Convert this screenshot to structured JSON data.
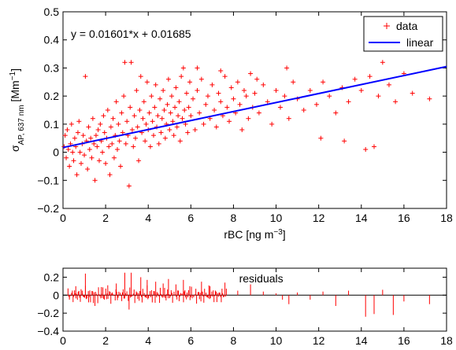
{
  "chart_data": [
    {
      "type": "scatter",
      "title": "",
      "xlabel": {
        "main": "rBC [ng m",
        "sup": "−3",
        "tail": "]"
      },
      "ylabel": {
        "main": "σ",
        "sub": "AP, 637 nm",
        "rest": " [Mm",
        "sup": "−1",
        "tail": "]"
      },
      "xlim": [
        0,
        18
      ],
      "ylim": [
        -0.2,
        0.5
      ],
      "xticks": [
        0,
        2,
        4,
        6,
        8,
        10,
        12,
        14,
        16,
        18
      ],
      "yticks": [
        -0.2,
        -0.1,
        0,
        0.1,
        0.2,
        0.3,
        0.4,
        0.5
      ],
      "xtick_labels": [
        "0",
        "2",
        "4",
        "6",
        "8",
        "10",
        "12",
        "14",
        "16",
        "18"
      ],
      "ytick_labels": [
        "−0.2",
        "−0.1",
        "0",
        "0.1",
        "0.2",
        "0.3",
        "0.4",
        "0.5"
      ],
      "equation": "y = 0.01601*x + 0.01685",
      "fit": {
        "slope": 0.01601,
        "intercept": 0.01685
      },
      "legend": [
        {
          "label": "data",
          "marker": "+",
          "color": "#ff0000"
        },
        {
          "label": "linear",
          "marker": "line",
          "color": "#0000ff"
        }
      ],
      "legend_position": "top-right",
      "grid": false,
      "series": [
        {
          "name": "data",
          "color": "#ff0000",
          "points": [
            [
              0.05,
              0.02
            ],
            [
              0.1,
              0.06
            ],
            [
              0.15,
              -0.02
            ],
            [
              0.2,
              0.08
            ],
            [
              0.25,
              0.01
            ],
            [
              0.3,
              -0.05
            ],
            [
              0.35,
              0.03
            ],
            [
              0.4,
              0.1
            ],
            [
              0.45,
              0.0
            ],
            [
              0.5,
              -0.03
            ],
            [
              0.55,
              0.05
            ],
            [
              0.6,
              0.02
            ],
            [
              0.65,
              -0.08
            ],
            [
              0.7,
              0.07
            ],
            [
              0.75,
              0.11
            ],
            [
              0.8,
              0.0
            ],
            [
              0.85,
              -0.04
            ],
            [
              0.9,
              0.03
            ],
            [
              0.95,
              0.06
            ],
            [
              1.0,
              -0.01
            ],
            [
              1.05,
              0.27
            ],
            [
              1.1,
              0.04
            ],
            [
              1.15,
              -0.06
            ],
            [
              1.2,
              0.09
            ],
            [
              1.25,
              0.01
            ],
            [
              1.3,
              0.05
            ],
            [
              1.35,
              -0.02
            ],
            [
              1.4,
              0.12
            ],
            [
              1.45,
              0.03
            ],
            [
              1.5,
              -0.1
            ],
            [
              1.55,
              0.06
            ],
            [
              1.6,
              0.02
            ],
            [
              1.65,
              0.08
            ],
            [
              1.7,
              -0.03
            ],
            [
              1.75,
              0.1
            ],
            [
              1.8,
              0.04
            ],
            [
              1.85,
              0.0
            ],
            [
              1.9,
              0.13
            ],
            [
              1.95,
              0.07
            ],
            [
              2.0,
              -0.04
            ],
            [
              2.05,
              0.05
            ],
            [
              2.1,
              0.15
            ],
            [
              2.15,
              0.02
            ],
            [
              2.2,
              -0.08
            ],
            [
              2.25,
              0.09
            ],
            [
              2.3,
              0.03
            ],
            [
              2.35,
              0.12
            ],
            [
              2.4,
              -0.02
            ],
            [
              2.45,
              0.06
            ],
            [
              2.5,
              0.18
            ],
            [
              2.55,
              0.01
            ],
            [
              2.6,
              0.1
            ],
            [
              2.65,
              0.04
            ],
            [
              2.7,
              -0.05
            ],
            [
              2.75,
              0.14
            ],
            [
              2.8,
              0.07
            ],
            [
              2.85,
              0.2
            ],
            [
              2.9,
              0.32
            ],
            [
              2.95,
              0.03
            ],
            [
              3.0,
              0.11
            ],
            [
              3.05,
              0.06
            ],
            [
              3.1,
              -0.12
            ],
            [
              3.15,
              0.16
            ],
            [
              3.2,
              0.32
            ],
            [
              3.25,
              0.08
            ],
            [
              3.3,
              0.02
            ],
            [
              3.35,
              0.13
            ],
            [
              3.4,
              0.05
            ],
            [
              3.45,
              0.22
            ],
            [
              3.5,
              0.09
            ],
            [
              3.55,
              -0.03
            ],
            [
              3.6,
              0.15
            ],
            [
              3.65,
              0.27
            ],
            [
              3.7,
              0.07
            ],
            [
              3.75,
              0.12
            ],
            [
              3.8,
              0.18
            ],
            [
              3.85,
              0.04
            ],
            [
              3.9,
              0.1
            ],
            [
              3.95,
              0.25
            ],
            [
              4.0,
              0.08
            ],
            [
              4.05,
              0.14
            ],
            [
              4.1,
              0.02
            ],
            [
              4.15,
              0.2
            ],
            [
              4.2,
              0.11
            ],
            [
              4.25,
              0.06
            ],
            [
              4.3,
              0.16
            ],
            [
              4.35,
              0.24
            ],
            [
              4.4,
              0.09
            ],
            [
              4.45,
              0.13
            ],
            [
              4.5,
              0.03
            ],
            [
              4.55,
              0.19
            ],
            [
              4.6,
              0.07
            ],
            [
              4.65,
              0.12
            ],
            [
              4.7,
              0.22
            ],
            [
              4.75,
              0.15
            ],
            [
              4.8,
              0.05
            ],
            [
              4.85,
              0.1
            ],
            [
              4.9,
              0.17
            ],
            [
              4.95,
              0.26
            ],
            [
              5.0,
              0.08
            ],
            [
              5.05,
              0.14
            ],
            [
              5.1,
              0.2
            ],
            [
              5.15,
              0.11
            ],
            [
              5.2,
              0.06
            ],
            [
              5.25,
              0.16
            ],
            [
              5.3,
              0.23
            ],
            [
              5.35,
              0.09
            ],
            [
              5.4,
              0.13
            ],
            [
              5.45,
              0.18
            ],
            [
              5.5,
              0.04
            ],
            [
              5.55,
              0.27
            ],
            [
              5.6,
              0.12
            ],
            [
              5.65,
              0.3
            ],
            [
              5.7,
              0.15
            ],
            [
              5.75,
              0.1
            ],
            [
              5.8,
              0.21
            ],
            [
              5.85,
              0.07
            ],
            [
              5.9,
              0.16
            ],
            [
              5.95,
              0.25
            ],
            [
              6.0,
              0.13
            ],
            [
              6.1,
              0.19
            ],
            [
              6.2,
              0.08
            ],
            [
              6.3,
              0.22
            ],
            [
              6.4,
              0.14
            ],
            [
              6.5,
              0.26
            ],
            [
              6.6,
              0.1
            ],
            [
              6.7,
              0.17
            ],
            [
              6.8,
              0.2
            ],
            [
              6.9,
              0.12
            ],
            [
              7.0,
              0.24
            ],
            [
              7.1,
              0.15
            ],
            [
              7.2,
              0.09
            ],
            [
              7.3,
              0.21
            ],
            [
              7.4,
              0.18
            ],
            [
              7.5,
              0.13
            ],
            [
              7.6,
              0.27
            ],
            [
              7.7,
              0.16
            ],
            [
              7.8,
              0.11
            ],
            [
              7.9,
              0.23
            ],
            [
              8.0,
              0.19
            ],
            [
              8.1,
              0.14
            ],
            [
              8.2,
              0.25
            ],
            [
              8.3,
              0.17
            ],
            [
              8.4,
              0.08
            ],
            [
              8.5,
              0.22
            ],
            [
              8.6,
              0.2
            ],
            [
              8.7,
              0.12
            ],
            [
              8.8,
              0.28
            ],
            [
              8.9,
              0.16
            ],
            [
              9.0,
              0.21
            ],
            [
              9.2,
              0.14
            ],
            [
              9.4,
              0.24
            ],
            [
              9.6,
              0.18
            ],
            [
              9.8,
              0.1
            ],
            [
              10.0,
              0.22
            ],
            [
              10.2,
              0.16
            ],
            [
              10.4,
              0.2
            ],
            [
              10.6,
              0.12
            ],
            [
              10.8,
              0.25
            ],
            [
              11.0,
              0.19
            ],
            [
              11.3,
              0.15
            ],
            [
              11.6,
              0.22
            ],
            [
              11.9,
              0.17
            ],
            [
              12.2,
              0.25
            ],
            [
              12.5,
              0.2
            ],
            [
              12.8,
              0.14
            ],
            [
              13.1,
              0.23
            ],
            [
              13.4,
              0.18
            ],
            [
              13.7,
              0.26
            ],
            [
              14.0,
              0.22
            ],
            [
              14.2,
              0.01
            ],
            [
              14.4,
              0.27
            ],
            [
              14.6,
              0.02
            ],
            [
              14.8,
              0.2
            ],
            [
              15.0,
              0.32
            ],
            [
              15.3,
              0.24
            ],
            [
              15.6,
              0.18
            ],
            [
              16.0,
              0.28
            ],
            [
              16.4,
              0.21
            ],
            [
              17.2,
              0.19
            ],
            [
              12.1,
              0.05
            ],
            [
              13.2,
              0.04
            ],
            [
              9.1,
              0.26
            ],
            [
              10.5,
              0.3
            ],
            [
              7.4,
              0.29
            ],
            [
              6.3,
              0.3
            ]
          ]
        }
      ]
    },
    {
      "type": "bar",
      "title": "",
      "annotation": "residuals",
      "xlim": [
        0,
        18
      ],
      "ylim": [
        -0.4,
        0.3
      ],
      "xticks": [
        0,
        2,
        4,
        6,
        8,
        10,
        12,
        14,
        16,
        18
      ],
      "yticks": [
        -0.4,
        -0.2,
        0,
        0.2
      ],
      "xtick_labels": [
        "0",
        "2",
        "4",
        "6",
        "8",
        "10",
        "12",
        "14",
        "16",
        "18"
      ],
      "ytick_labels": [
        "−0.4",
        "−0.2",
        "0",
        "0.2"
      ],
      "color": "#ff0000",
      "x": [
        0.3,
        0.6,
        0.9,
        1.05,
        1.2,
        1.5,
        1.8,
        2.1,
        2.5,
        2.9,
        3.1,
        3.2,
        3.65,
        3.95,
        4.35,
        4.7,
        4.95,
        5.3,
        5.65,
        5.95,
        6.5,
        6.9,
        7.6,
        8.2,
        8.8,
        9.4,
        10.0,
        10.3,
        10.6,
        11.0,
        11.6,
        12.2,
        12.8,
        13.4,
        14.2,
        14.6,
        15.0,
        15.5,
        16.0,
        17.2
      ],
      "values": [
        -0.05,
        0.1,
        0.05,
        0.24,
        -0.08,
        -0.12,
        0.09,
        0.11,
        0.13,
        0.25,
        -0.16,
        0.25,
        0.2,
        0.17,
        0.15,
        0.13,
        0.18,
        0.12,
        0.17,
        0.1,
        0.15,
        0.1,
        0.14,
        0.05,
        0.12,
        0.04,
        0.02,
        -0.05,
        -0.1,
        0.03,
        -0.05,
        0.04,
        -0.12,
        0.05,
        -0.24,
        -0.21,
        0.06,
        -0.22,
        -0.07,
        -0.1
      ]
    }
  ]
}
